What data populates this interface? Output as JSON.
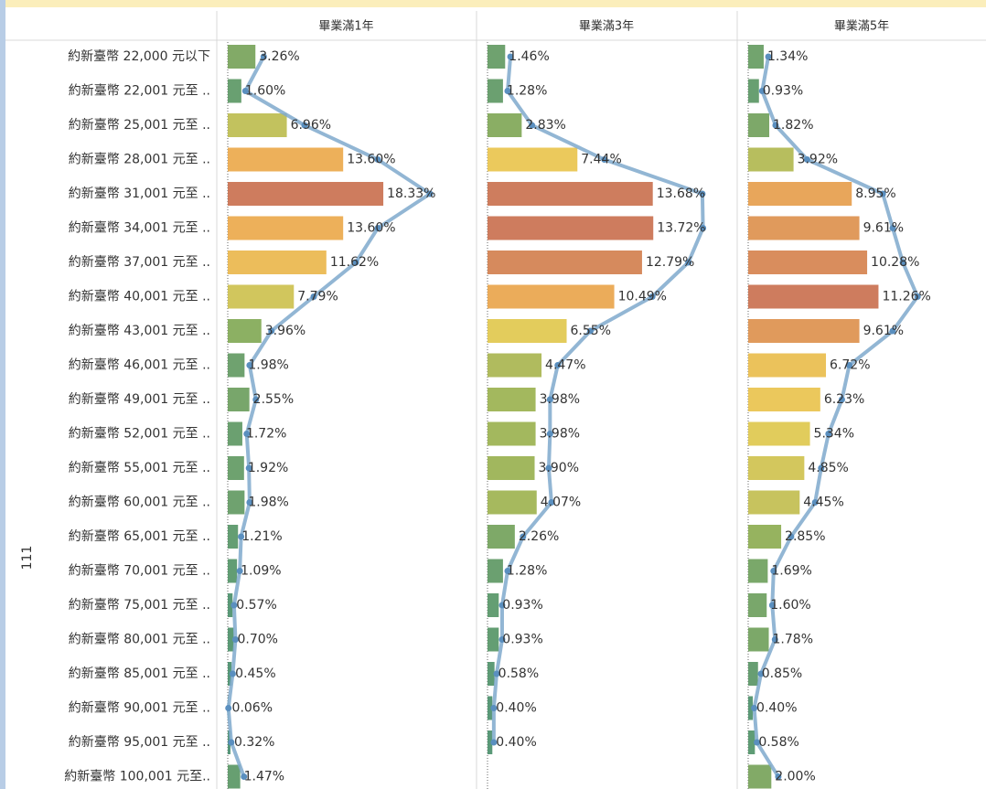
{
  "chart_data": {
    "type": "bar",
    "row_label": "111",
    "categories": [
      "約新臺幣 22,000 元以下",
      "約新臺幣 22,001 元至 ..",
      "約新臺幣 25,001 元至 ..",
      "約新臺幣 28,001 元至 ..",
      "約新臺幣 31,001 元至 ..",
      "約新臺幣 34,001 元至 ..",
      "約新臺幣 37,001 元至 ..",
      "約新臺幣 40,001 元至 ..",
      "約新臺幣 43,001 元至 ..",
      "約新臺幣 46,001 元至 ..",
      "約新臺幣 49,001 元至 ..",
      "約新臺幣 52,001 元至 ..",
      "約新臺幣 55,001 元至 ..",
      "約新臺幣 60,001 元至 ..",
      "約新臺幣 65,001 元至 ..",
      "約新臺幣 70,001 元至 ..",
      "約新臺幣 75,001 元至 ..",
      "約新臺幣 80,001 元至 ..",
      "約新臺幣 85,001 元至 ..",
      "約新臺幣 90,001 元至 ..",
      "約新臺幣 95,001 元至 ..",
      "約新臺幣 100,001 元至.."
    ],
    "color_scale": [
      "#3f8a6c",
      "#8aab4e",
      "#e8c94a",
      "#eba648",
      "#c96e4c"
    ],
    "line_color": "#7fa9cc",
    "series": [
      {
        "name": "畢業滿1年",
        "xlim": [
          0,
          30.5
        ],
        "values": [
          3.26,
          1.6,
          6.96,
          13.6,
          18.33,
          13.6,
          11.62,
          7.79,
          3.96,
          1.98,
          2.55,
          1.72,
          1.92,
          1.98,
          1.21,
          1.09,
          0.57,
          0.7,
          0.45,
          0.06,
          0.32,
          1.47
        ],
        "value_labels": [
          "3.26%",
          "1.60%",
          "6.96%",
          "13.60%",
          "18.33%",
          "13.60%",
          "11.62%",
          "7.79%",
          "3.96%",
          "1.98%",
          "2.55%",
          "1.72%",
          "1.92%",
          "1.98%",
          "1.21%",
          "1.09%",
          "0.57%",
          "0.70%",
          "0.45%",
          "0.06%",
          "0.32%",
          "1.47%"
        ]
      },
      {
        "name": "畢業滿3年",
        "xlim": [
          0,
          21.5
        ],
        "values": [
          1.46,
          1.28,
          2.83,
          7.44,
          13.68,
          13.72,
          12.79,
          10.49,
          6.55,
          4.47,
          3.98,
          3.98,
          3.9,
          4.07,
          2.26,
          1.28,
          0.93,
          0.93,
          0.58,
          0.4,
          0.4,
          null
        ],
        "value_labels": [
          "1.46%",
          "1.28%",
          "2.83%",
          "7.44%",
          "13.68%",
          "13.72%",
          "12.79%",
          "10.49%",
          "6.55%",
          "4.47%",
          "3.98%",
          "3.98%",
          "3.90%",
          "4.07%",
          "2.26%",
          "1.28%",
          "0.93%",
          "0.93%",
          "0.58%",
          "0.40%",
          "0.40%",
          null
        ]
      },
      {
        "name": "畢業滿5年",
        "xlim": [
          0,
          21.5
        ],
        "values": [
          1.34,
          0.93,
          1.82,
          3.92,
          8.95,
          9.61,
          10.28,
          11.26,
          9.61,
          6.72,
          6.23,
          5.34,
          4.85,
          4.45,
          2.85,
          1.69,
          1.6,
          1.78,
          0.85,
          0.4,
          0.58,
          2.0
        ],
        "value_labels": [
          "1.34%",
          "0.93%",
          "1.82%",
          "3.92%",
          "8.95%",
          "9.61%",
          "10.28%",
          "11.26%",
          "9.61%",
          "6.72%",
          "6.23%",
          "5.34%",
          "4.85%",
          "4.45%",
          "2.85%",
          "1.69%",
          "1.60%",
          "1.78%",
          "0.85%",
          "0.40%",
          "0.58%",
          "2.00%"
        ]
      }
    ]
  }
}
